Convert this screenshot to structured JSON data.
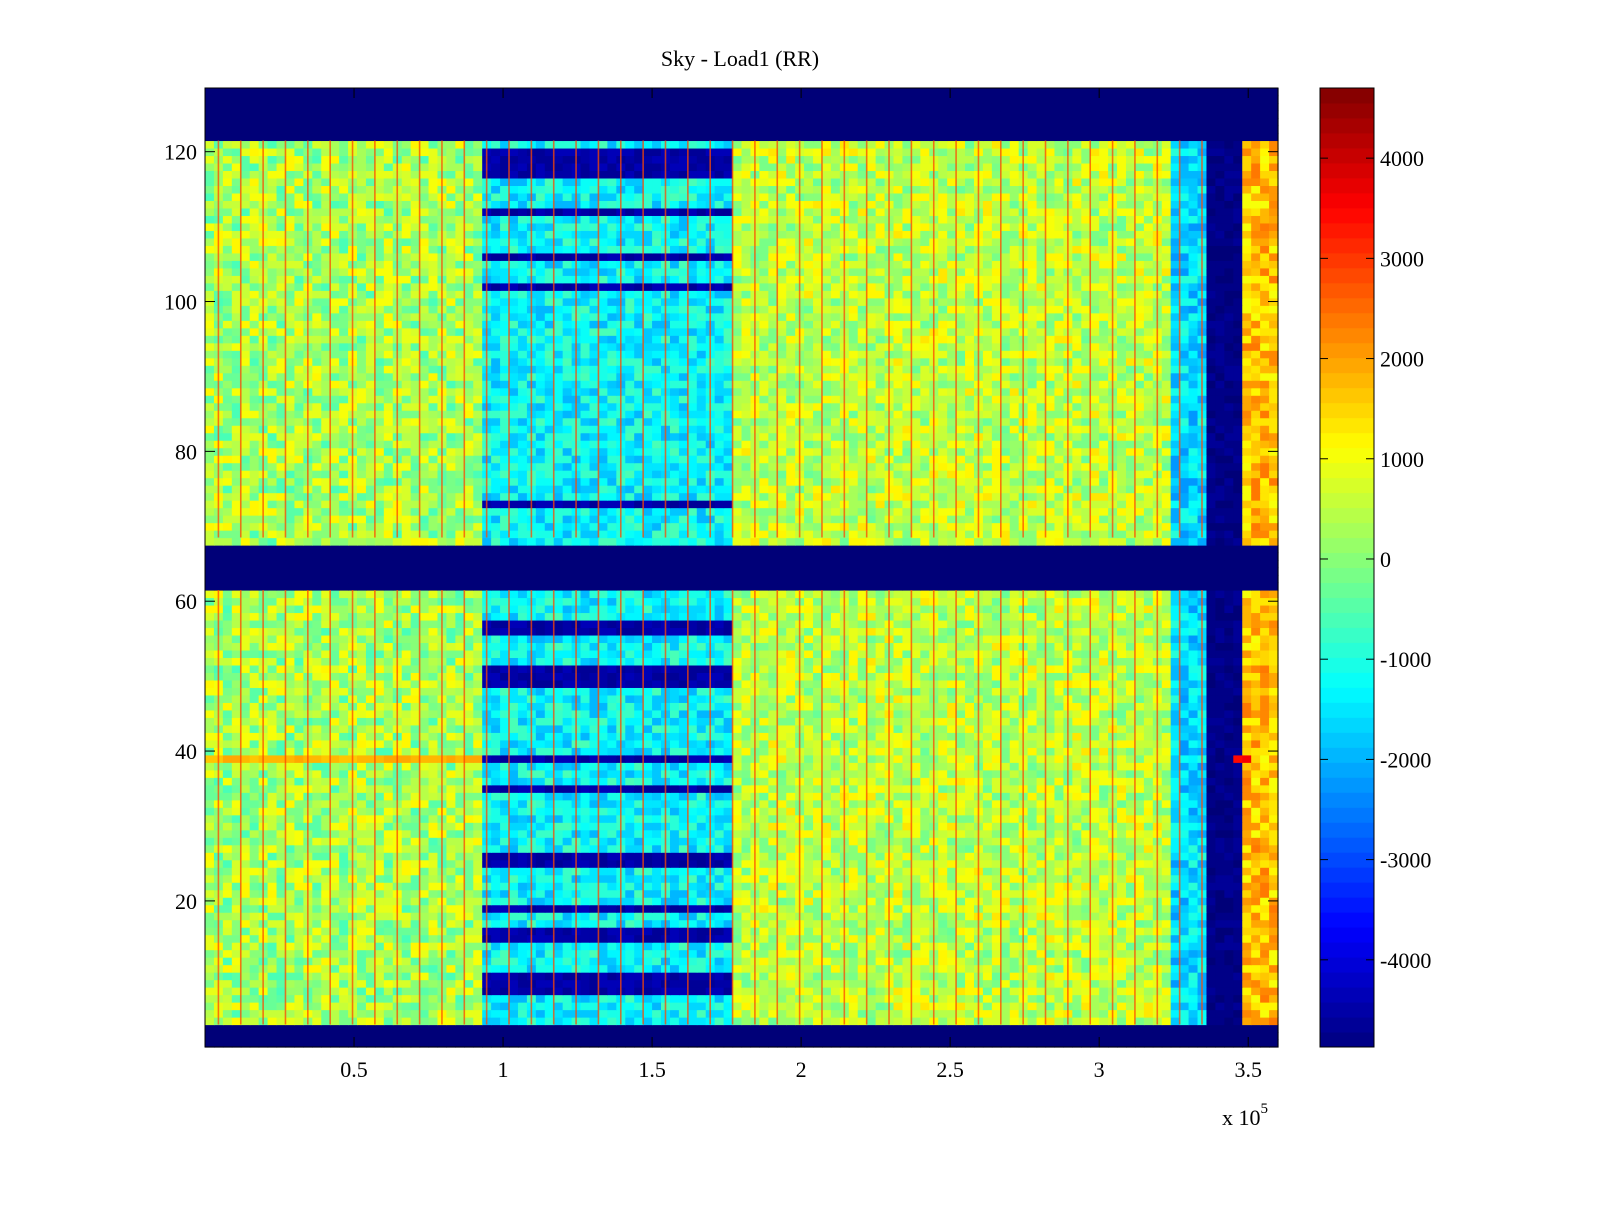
{
  "chart_data": {
    "type": "heatmap",
    "title": "Sky - Load1 (RR)",
    "xlabel": "",
    "ylabel": "",
    "x_exponent_label": "x 10",
    "x_exponent": "5",
    "xlim": [
      0,
      360000
    ],
    "ylim": [
      0.5,
      128.5
    ],
    "clim": [
      -4870,
      4700
    ],
    "colormap": "jet",
    "colormap_levels": 64,
    "x_ticks": [
      {
        "value": 50000,
        "label": "0.5"
      },
      {
        "value": 100000,
        "label": "1"
      },
      {
        "value": 150000,
        "label": "1.5"
      },
      {
        "value": 200000,
        "label": "2"
      },
      {
        "value": 250000,
        "label": "2.5"
      },
      {
        "value": 300000,
        "label": "3"
      },
      {
        "value": 350000,
        "label": "3.5"
      }
    ],
    "y_ticks": [
      {
        "value": 20,
        "label": "20"
      },
      {
        "value": 40,
        "label": "40"
      },
      {
        "value": 60,
        "label": "60"
      },
      {
        "value": 80,
        "label": "80"
      },
      {
        "value": 100,
        "label": "100"
      },
      {
        "value": 120,
        "label": "120"
      }
    ],
    "colorbar_ticks": [
      {
        "value": 4000,
        "label": "4000"
      },
      {
        "value": 3000,
        "label": "3000"
      },
      {
        "value": 2000,
        "label": "2000"
      },
      {
        "value": 1000,
        "label": "1000"
      },
      {
        "value": 0,
        "label": "0"
      },
      {
        "value": -1000,
        "label": "-1000"
      },
      {
        "value": -2000,
        "label": "-2000"
      },
      {
        "value": -3000,
        "label": "-3000"
      },
      {
        "value": -4000,
        "label": "-4000"
      }
    ],
    "masked_rows": [
      [
        1,
        3
      ],
      [
        62,
        67
      ],
      [
        122,
        128
      ]
    ],
    "masked_value": -4870,
    "regions": [
      {
        "x": [
          0,
          92000
        ],
        "mean": 300,
        "noise": 900
      },
      {
        "x": [
          92000,
          178000
        ],
        "mean": -1300,
        "noise": 700
      },
      {
        "x": [
          178000,
          325000
        ],
        "mean": 500,
        "noise": 800
      },
      {
        "x": [
          325000,
          335000
        ],
        "mean": -1600,
        "noise": 700
      },
      {
        "x": [
          335000,
          347000
        ],
        "mean": -4800,
        "noise": 150
      },
      {
        "x": [
          347000,
          360000
        ],
        "mean": 1700,
        "noise": 700
      }
    ],
    "row_anomalies": [
      {
        "x": [
          93000,
          176000
        ],
        "rows": [
          8,
          9,
          10,
          15,
          16,
          19,
          25,
          26,
          35,
          39,
          49,
          50,
          51,
          56,
          57,
          73,
          102,
          106,
          112,
          117,
          118,
          119,
          120
        ],
        "value": -4500
      },
      {
        "x": [
          0,
          92000
        ],
        "rows": [
          39
        ],
        "value": 1800
      },
      {
        "x": [
          345000,
          350000
        ],
        "rows": [
          39
        ],
        "value": 3500
      }
    ],
    "vertical_stripes": {
      "period": 7500,
      "value": 2800,
      "x": [
        0,
        335000
      ]
    }
  }
}
